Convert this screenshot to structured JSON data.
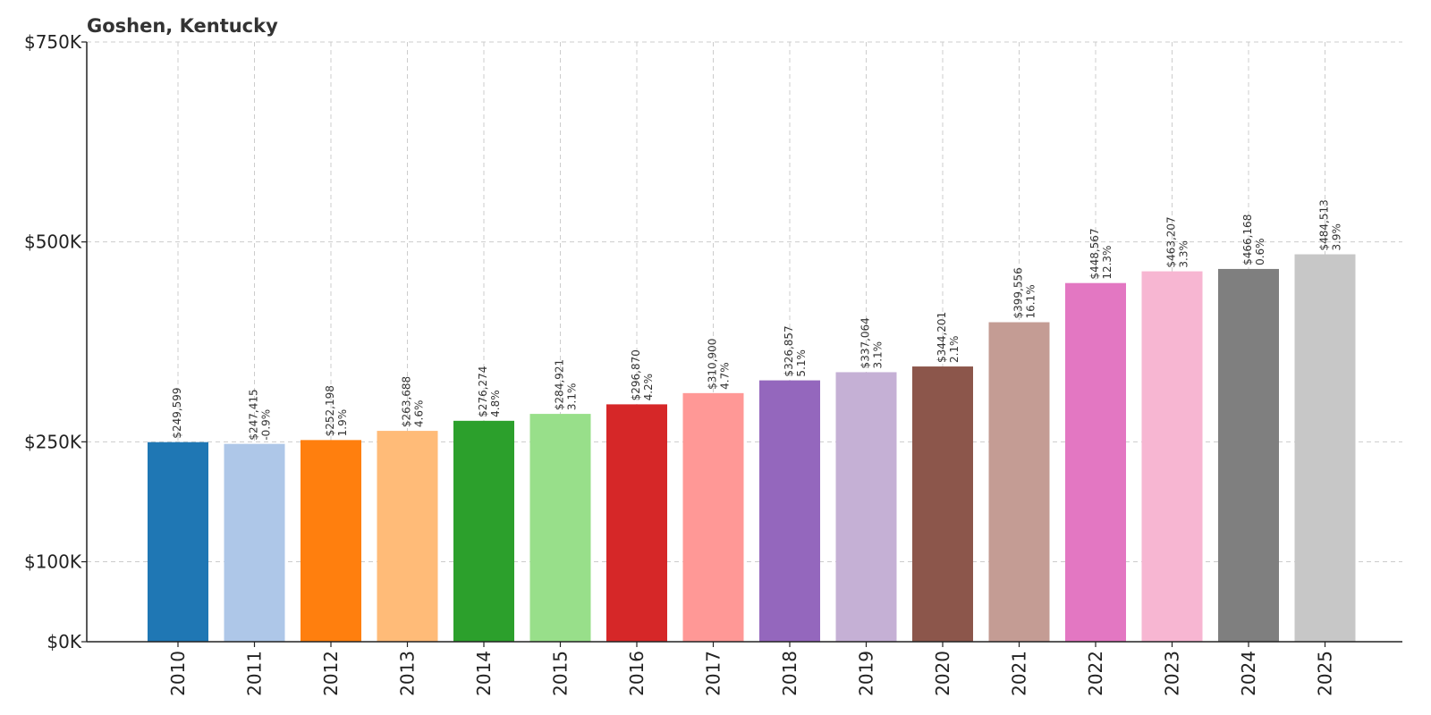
{
  "chart_data": {
    "type": "bar",
    "title": "Goshen, Kentucky",
    "xlabel": "",
    "ylabel": "",
    "categories": [
      "2010",
      "2011",
      "2012",
      "2013",
      "2014",
      "2015",
      "2016",
      "2017",
      "2018",
      "2019",
      "2020",
      "2021",
      "2022",
      "2023",
      "2024",
      "2025"
    ],
    "values": [
      249599,
      247415,
      252198,
      263688,
      276274,
      284921,
      296870,
      310900,
      326857,
      337064,
      344201,
      399556,
      448567,
      463207,
      466168,
      484513
    ],
    "value_labels": [
      "$249,599",
      "$247,415",
      "$252,198",
      "$263,688",
      "$276,274",
      "$284,921",
      "$296,870",
      "$310,900",
      "$326,857",
      "$337,064",
      "$344,201",
      "$399,556",
      "$448,567",
      "$463,207",
      "$466,168",
      "$484,513"
    ],
    "change_labels": [
      "",
      "-0.9%",
      "1.9%",
      "4.6%",
      "4.8%",
      "3.1%",
      "4.2%",
      "4.7%",
      "5.1%",
      "3.1%",
      "2.1%",
      "16.1%",
      "12.3%",
      "3.3%",
      "0.6%",
      "3.9%"
    ],
    "colors": [
      "#1f77b4",
      "#aec7e8",
      "#ff7f0e",
      "#ffbb78",
      "#2ca02c",
      "#98df8a",
      "#d62728",
      "#ff9896",
      "#9467bd",
      "#c5b0d5",
      "#8c564b",
      "#c49c94",
      "#e377c2",
      "#f7b6d2",
      "#7f7f7f",
      "#c7c7c7"
    ],
    "yticks": [
      0,
      100000,
      250000,
      500000,
      750000
    ],
    "ytick_labels": [
      "$0K",
      "$100K",
      "$250K",
      "$500K",
      "$750K"
    ],
    "ylim": [
      0,
      750000
    ],
    "grid": true
  }
}
